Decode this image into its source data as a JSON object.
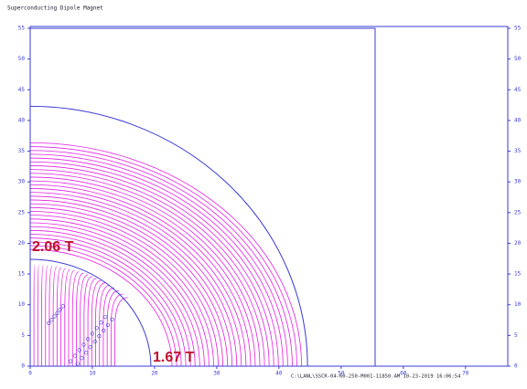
{
  "chart_data": {
    "type": "field-plot",
    "title": "Superconducting Dipole Magnet",
    "footer": "C:\\LANL\\SSCR-04-60-250-M001-11850.AM 10-23-2019 16:06:54",
    "annotations": [
      "2.06 T",
      "1.67 T"
    ],
    "xlim": [
      0,
      76.8
    ],
    "ylim": [
      0,
      55
    ],
    "xticks": [
      0,
      10,
      20,
      30,
      40,
      50,
      60,
      70
    ],
    "yticks": [
      0,
      5,
      10,
      15,
      20,
      25,
      30,
      35,
      40,
      45,
      50,
      55
    ],
    "frame_color": "#3b3bd6",
    "line_color": "#e61ee6"
  }
}
